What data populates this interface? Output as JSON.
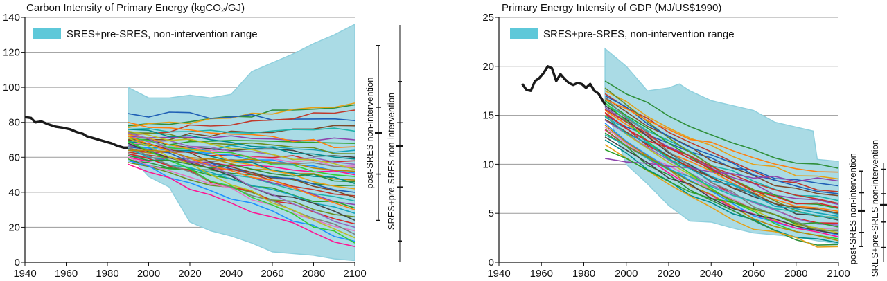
{
  "colors": {
    "range_fill": "#aadbe5",
    "range_stroke": "#8fd0de",
    "legend_swatch": "#5ec8d9",
    "historical": "#1a1a1a",
    "grid": "#9a9a9a",
    "scenario_palette": [
      "#2f8f3a",
      "#e6a017",
      "#1f5fb5",
      "#c0392b",
      "#7d4a2a",
      "#20b2aa",
      "#8e44ad",
      "#2ca02c",
      "#ff7f0e",
      "#17a2b8",
      "#6b8e23",
      "#444444",
      "#d62728",
      "#9467bd",
      "#e377c2",
      "#7f7f7f",
      "#bcbd22",
      "#1e90ff",
      "#ff1493",
      "#32cd32",
      "#b8860b",
      "#008b8b"
    ]
  },
  "chart_data": [
    {
      "type": "line",
      "title": "Carbon Intensity of Primary Energy (kgCO₂/GJ)",
      "xlim": [
        1940,
        2100
      ],
      "ylim": [
        0,
        140
      ],
      "x_ticks": [
        "1940",
        "1960",
        "1980",
        "2000",
        "2020",
        "2040",
        "2060",
        "2080",
        "2100"
      ],
      "y_ticks": [
        "0",
        "20",
        "40",
        "60",
        "80",
        "100",
        "120",
        "140"
      ],
      "grid": "horizontal",
      "legend": {
        "label": "SRES+pre-SRES, non-intervention range",
        "placement": "top-left"
      },
      "range_band": {
        "upper": [
          [
            1990,
            100
          ],
          [
            2000,
            94
          ],
          [
            2010,
            94
          ],
          [
            2020,
            95.5
          ],
          [
            2030,
            94
          ],
          [
            2040,
            96
          ],
          [
            2050,
            109
          ],
          [
            2060,
            114
          ],
          [
            2070,
            119
          ],
          [
            2080,
            125
          ],
          [
            2090,
            130
          ],
          [
            2100,
            136
          ]
        ],
        "lower": [
          [
            1990,
            62
          ],
          [
            2000,
            49
          ],
          [
            2010,
            43
          ],
          [
            2020,
            23
          ],
          [
            2030,
            18
          ],
          [
            2040,
            15
          ],
          [
            2050,
            11
          ],
          [
            2060,
            6
          ],
          [
            2070,
            5
          ],
          [
            2080,
            4
          ],
          [
            2090,
            2
          ],
          [
            2100,
            1
          ]
        ]
      },
      "historical": {
        "x": [
          1940,
          1943,
          1945,
          1948,
          1951,
          1955,
          1958,
          1962,
          1965,
          1968,
          1970,
          1973,
          1976,
          1979,
          1982,
          1985,
          1988,
          1990
        ],
        "y": [
          83,
          82.5,
          80,
          80.5,
          79,
          77.5,
          77,
          76,
          74.5,
          73.5,
          72,
          71,
          70,
          69,
          68,
          66.5,
          65.5,
          65.5
        ]
      },
      "scenario_lines": [
        {
          "start": 78,
          "end": 90
        },
        {
          "start": 77,
          "end": 91
        },
        {
          "start": 85,
          "end": 81
        },
        {
          "start": 73,
          "end": 87
        },
        {
          "start": 70,
          "end": 78
        },
        {
          "start": 76,
          "end": 75
        },
        {
          "start": 72,
          "end": 70
        },
        {
          "start": 68,
          "end": 68
        },
        {
          "start": 80,
          "end": 66
        },
        {
          "start": 66,
          "end": 64
        },
        {
          "start": 74,
          "end": 62
        },
        {
          "start": 70,
          "end": 60
        },
        {
          "start": 65,
          "end": 58
        },
        {
          "start": 72,
          "end": 56
        },
        {
          "start": 68,
          "end": 55
        },
        {
          "start": 62,
          "end": 54
        },
        {
          "start": 75,
          "end": 53
        },
        {
          "start": 67,
          "end": 51
        },
        {
          "start": 60,
          "end": 50
        },
        {
          "start": 71,
          "end": 49
        },
        {
          "start": 64,
          "end": 47
        },
        {
          "start": 69,
          "end": 45
        },
        {
          "start": 58,
          "end": 44
        },
        {
          "start": 73,
          "end": 42
        },
        {
          "start": 66,
          "end": 40
        },
        {
          "start": 63,
          "end": 38
        },
        {
          "start": 70,
          "end": 37
        },
        {
          "start": 61,
          "end": 35
        },
        {
          "start": 67,
          "end": 33
        },
        {
          "start": 59,
          "end": 31
        },
        {
          "start": 72,
          "end": 30
        },
        {
          "start": 65,
          "end": 28
        },
        {
          "start": 57,
          "end": 26
        },
        {
          "start": 68,
          "end": 24
        },
        {
          "start": 62,
          "end": 22
        },
        {
          "start": 74,
          "end": 20
        },
        {
          "start": 60,
          "end": 18
        },
        {
          "start": 66,
          "end": 16
        },
        {
          "start": 71,
          "end": 14
        },
        {
          "start": 58,
          "end": 12
        },
        {
          "start": 56,
          "end": 9
        },
        {
          "start": 69,
          "end": 11
        },
        {
          "start": 64,
          "end": 52
        },
        {
          "start": 76,
          "end": 59
        },
        {
          "start": 61,
          "end": 46
        }
      ],
      "range_bars": [
        {
          "label": "post-SRES non-intervention",
          "min": 16,
          "q1": 34,
          "median": 50,
          "q3": 60,
          "max": 84
        },
        {
          "label": "SRES+pre-SRES non-intervention",
          "min": 8,
          "q1": 29,
          "median": 45,
          "q3": 54,
          "max": 70
        }
      ],
      "range_bars_axis_max": 92
    },
    {
      "type": "line",
      "title": "Primary Energy Intensity of GDP (MJ/US$1990)",
      "xlim": [
        1940,
        2100
      ],
      "ylim": [
        0,
        25
      ],
      "x_ticks": [
        "1940",
        "1960",
        "1980",
        "2000",
        "2020",
        "2040",
        "2060",
        "2080",
        "2100"
      ],
      "y_ticks": [
        "0",
        "5",
        "10",
        "15",
        "20",
        "25"
      ],
      "grid": "horizontal",
      "legend": {
        "label": "SRES+pre-SRES, non-intervention range",
        "placement": "top-left"
      },
      "range_band": {
        "upper": [
          [
            1990,
            21.8
          ],
          [
            2000,
            20
          ],
          [
            2010,
            17.5
          ],
          [
            2020,
            17.8
          ],
          [
            2025,
            18.2
          ],
          [
            2030,
            17.5
          ],
          [
            2040,
            16.5
          ],
          [
            2050,
            16
          ],
          [
            2060,
            15.5
          ],
          [
            2070,
            14.3
          ],
          [
            2080,
            13.8
          ],
          [
            2088,
            13.4
          ],
          [
            2090,
            10.5
          ],
          [
            2100,
            10.3
          ]
        ],
        "lower": [
          [
            1990,
            16
          ],
          [
            2000,
            10
          ],
          [
            2010,
            8
          ],
          [
            2020,
            5.8
          ],
          [
            2030,
            4.2
          ],
          [
            2040,
            4.1
          ],
          [
            2050,
            3.5
          ],
          [
            2060,
            3
          ],
          [
            2070,
            2.8
          ],
          [
            2080,
            2.6
          ],
          [
            2090,
            2.2
          ],
          [
            2100,
            1.9
          ]
        ]
      },
      "historical": {
        "x": [
          1951,
          1953,
          1955,
          1957,
          1959,
          1961,
          1963,
          1965,
          1967,
          1969,
          1971,
          1973,
          1975,
          1977,
          1979,
          1981,
          1983,
          1985,
          1987,
          1990
        ],
        "y": [
          18.2,
          17.6,
          17.5,
          18.5,
          18.8,
          19.3,
          20,
          19.8,
          18.5,
          19.2,
          18.7,
          18.3,
          18.1,
          18.3,
          18.2,
          17.8,
          18.2,
          17.5,
          17.2,
          16.1
        ]
      },
      "scenario_lines": [
        {
          "start": 18.5,
          "end": 9.6
        },
        {
          "start": 17.5,
          "end": 8.5
        },
        {
          "start": 15,
          "end": 7.8
        },
        {
          "start": 17.2,
          "end": 7.2
        },
        {
          "start": 16.8,
          "end": 6.8
        },
        {
          "start": 16.2,
          "end": 6.3
        },
        {
          "start": 15.8,
          "end": 5.9
        },
        {
          "start": 16.5,
          "end": 5.5
        },
        {
          "start": 15.5,
          "end": 5.2
        },
        {
          "start": 14.8,
          "end": 4.9
        },
        {
          "start": 17.8,
          "end": 4.6
        },
        {
          "start": 16,
          "end": 4.3
        },
        {
          "start": 15.2,
          "end": 4
        },
        {
          "start": 14.5,
          "end": 3.8
        },
        {
          "start": 13.8,
          "end": 3.5
        },
        {
          "start": 16.8,
          "end": 3.2
        },
        {
          "start": 15,
          "end": 3
        },
        {
          "start": 14.2,
          "end": 2.8
        },
        {
          "start": 13.5,
          "end": 2.6
        },
        {
          "start": 16.3,
          "end": 2.4
        },
        {
          "start": 14,
          "end": 2.2
        },
        {
          "start": 12.5,
          "end": 2
        },
        {
          "start": 13.2,
          "end": 1.8
        },
        {
          "start": 12,
          "end": 1.6
        },
        {
          "start": 17,
          "end": 7
        },
        {
          "start": 15.6,
          "end": 6
        },
        {
          "start": 14.6,
          "end": 5
        },
        {
          "start": 13,
          "end": 4.4
        },
        {
          "start": 10.6,
          "end": 8.3
        },
        {
          "start": 11.5,
          "end": 3.6
        },
        {
          "start": 16.6,
          "end": 9.2
        },
        {
          "start": 14.9,
          "end": 4.7
        },
        {
          "start": 13.6,
          "end": 3.3
        },
        {
          "start": 12.8,
          "end": 2.9
        },
        {
          "start": 15.3,
          "end": 5.6
        }
      ],
      "range_bars": [
        {
          "label": "post-SRES non-intervention",
          "min": 1.6,
          "q1": 3.1,
          "median": 5.4,
          "q3": 7.3,
          "max": 9.6
        },
        {
          "label": "SRES+pre-SRES non-intervention",
          "min": 1.5,
          "q1": 4.2,
          "median": 6,
          "q3": 7.2,
          "max": 9.8
        }
      ],
      "range_bars_axis_max": 10.5
    }
  ]
}
